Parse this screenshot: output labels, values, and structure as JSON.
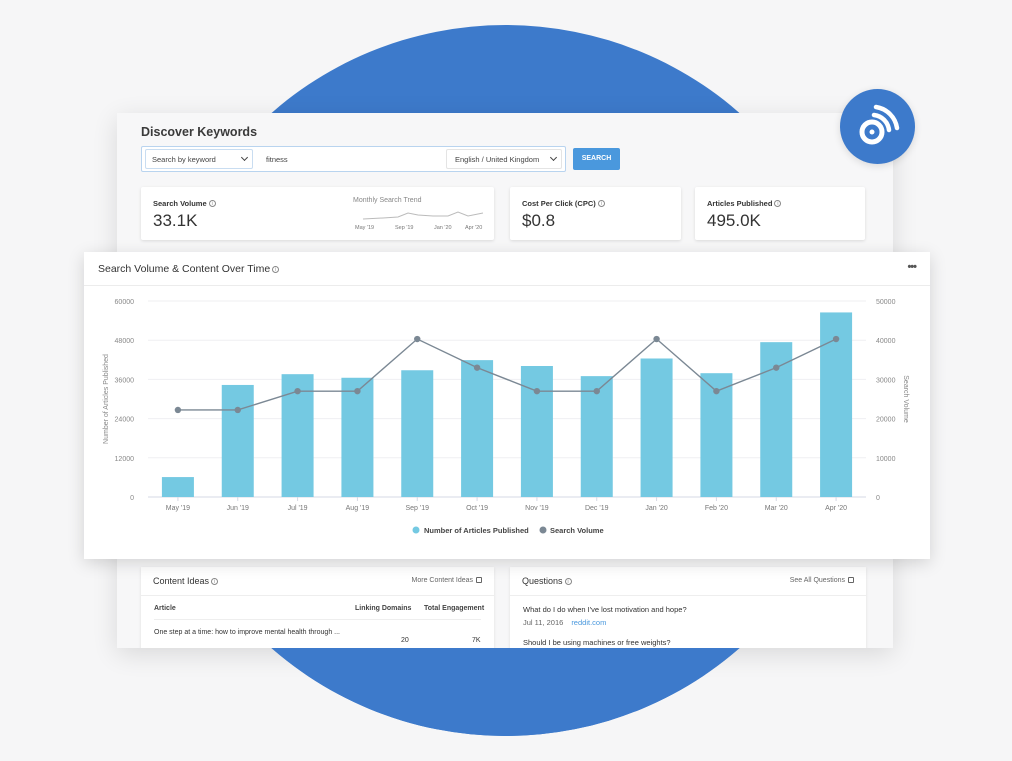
{
  "colors": {
    "background": "#f6f6f7",
    "brand_blue": "#3d7acb",
    "bar": "#74c9e2",
    "line": "#7b8894",
    "button": "#4a98dd",
    "link": "#4a98dd"
  },
  "page": {
    "title": "Discover Keywords"
  },
  "search": {
    "type_select": "Search by keyword",
    "query_value": "fitness",
    "language_select": "English / United Kingdom",
    "button_label": "SEARCH"
  },
  "metrics": [
    {
      "label": "Search Volume",
      "value": "33.1K",
      "trend_label": "Monthly Search Trend",
      "trend_ticks": [
        "May '19",
        "Sep '19",
        "Jan '20",
        "Apr '20"
      ]
    },
    {
      "label": "Cost Per Click (CPC)",
      "value": "$0.8"
    },
    {
      "label": "Articles Published",
      "value": "495.0K"
    }
  ],
  "chart_card": {
    "title": "Search Volume & Content Over Time",
    "info_icon": "info-icon",
    "menu_icon": "more-horizontal-icon",
    "menu_label": "•••"
  },
  "chart_data": {
    "type": "bar",
    "title": "Search Volume & Content Over Time",
    "categories": [
      "May '19",
      "Jun '19",
      "Jul '19",
      "Aug '19",
      "Sep '19",
      "Oct '19",
      "Nov '19",
      "Dec '19",
      "Jan '20",
      "Feb '20",
      "Mar '20",
      "Apr '20"
    ],
    "series": [
      {
        "name": "Number of Articles Published",
        "type": "bar",
        "axis": "left",
        "color": "#74c9e2",
        "values": [
          6100,
          34300,
          37600,
          36500,
          38800,
          41900,
          40100,
          37000,
          42400,
          37900,
          47400,
          56500
        ]
      },
      {
        "name": "Search Volume",
        "type": "line",
        "axis": "right",
        "color": "#7b8894",
        "values": [
          22200,
          22200,
          27000,
          27000,
          40300,
          33000,
          27000,
          27000,
          40300,
          27000,
          33000,
          40300
        ]
      }
    ],
    "ylabel": "Number of Articles Published",
    "ylabel_right": "Search Volume",
    "xlabel": "",
    "ylim": [
      0,
      60000
    ],
    "ylim_right": [
      0,
      50000
    ],
    "yticks": [
      "0",
      "12000",
      "24000",
      "36000",
      "48000",
      "60000"
    ],
    "yticks_right": [
      "0",
      "10000",
      "20000",
      "30000",
      "40000",
      "50000"
    ],
    "grid": true,
    "legend_position": "bottom"
  },
  "content_ideas": {
    "title": "Content Ideas",
    "link": "More Content Ideas",
    "columns": [
      "Article",
      "Linking Domains",
      "Total Engagement"
    ],
    "rows": [
      {
        "article": "One step at a time: how to improve mental health through ...",
        "linking_domains": "20",
        "total_engagement": "7K"
      }
    ]
  },
  "questions": {
    "title": "Questions",
    "link": "See All Questions",
    "items": [
      {
        "question": "What do I do when I've lost motivation and hope?",
        "date": "Jul 11, 2016",
        "source": "reddit.com"
      },
      {
        "question": "Should I be using machines or free weights?"
      }
    ]
  }
}
